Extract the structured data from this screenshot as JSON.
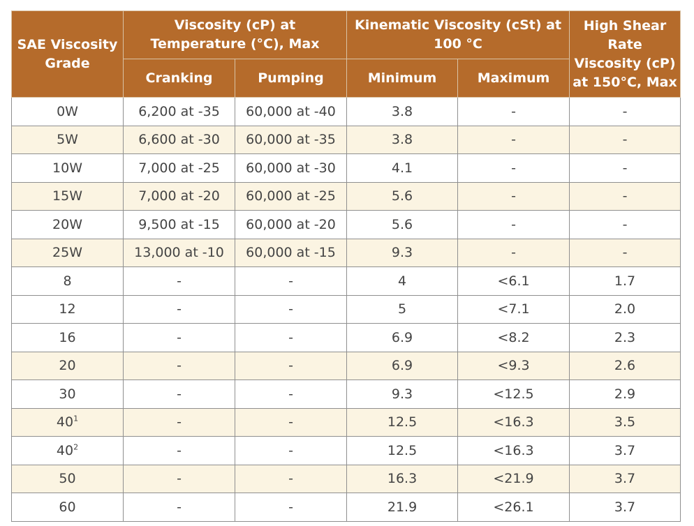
{
  "headers": {
    "grade": "SAE Viscosity Grade",
    "viscosity_temp": "Viscosity (cP) at Temperature (°C), Max",
    "cranking": "Cranking",
    "pumping": "Pumping",
    "kinematic": "Kinematic Viscosity (cSt) at 100 °C",
    "minimum": "Minimum",
    "maximum": "Maximum",
    "high_shear": "High Shear Rate Viscosity (cP) at 150°C, Max"
  },
  "rows": [
    {
      "grade": "0W",
      "grade_sup": "",
      "cranking": "6,200 at -35",
      "pumping": "60,000 at -40",
      "min": "3.8",
      "max": "-",
      "hs": "-"
    },
    {
      "grade": "5W",
      "grade_sup": "",
      "cranking": "6,600 at -30",
      "pumping": "60,000 at -35",
      "min": "3.8",
      "max": "-",
      "hs": "-"
    },
    {
      "grade": "10W",
      "grade_sup": "",
      "cranking": "7,000 at -25",
      "pumping": "60,000 at -30",
      "min": "4.1",
      "max": "-",
      "hs": "-"
    },
    {
      "grade": "15W",
      "grade_sup": "",
      "cranking": "7,000 at -20",
      "pumping": "60,000 at -25",
      "min": "5.6",
      "max": "-",
      "hs": "-"
    },
    {
      "grade": "20W",
      "grade_sup": "",
      "cranking": "9,500 at -15",
      "pumping": "60,000 at -20",
      "min": "5.6",
      "max": "-",
      "hs": "-"
    },
    {
      "grade": "25W",
      "grade_sup": "",
      "cranking": "13,000 at -10",
      "pumping": "60,000 at -15",
      "min": "9.3",
      "max": "-",
      "hs": "-"
    },
    {
      "grade": "8",
      "grade_sup": "",
      "cranking": "-",
      "pumping": "-",
      "min": "4",
      "max": "<6.1",
      "hs": "1.7"
    },
    {
      "grade": "12",
      "grade_sup": "",
      "cranking": "-",
      "pumping": "-",
      "min": "5",
      "max": "<7.1",
      "hs": "2.0"
    },
    {
      "grade": "16",
      "grade_sup": "",
      "cranking": "-",
      "pumping": "-",
      "min": "6.9",
      "max": "<8.2",
      "hs": "2.3"
    },
    {
      "grade": "20",
      "grade_sup": "",
      "cranking": "-",
      "pumping": "-",
      "min": "6.9",
      "max": "<9.3",
      "hs": "2.6"
    },
    {
      "grade": "30",
      "grade_sup": "",
      "cranking": "-",
      "pumping": "-",
      "min": "9.3",
      "max": "<12.5",
      "hs": "2.9"
    },
    {
      "grade": "40",
      "grade_sup": "1",
      "cranking": "-",
      "pumping": "-",
      "min": "12.5",
      "max": "<16.3",
      "hs": "3.5"
    },
    {
      "grade": "40",
      "grade_sup": "2",
      "cranking": "-",
      "pumping": "-",
      "min": "12.5",
      "max": "<16.3",
      "hs": "3.7"
    },
    {
      "grade": "50",
      "grade_sup": "",
      "cranking": "-",
      "pumping": "-",
      "min": "16.3",
      "max": "<21.9",
      "hs": "3.7"
    },
    {
      "grade": "60",
      "grade_sup": "",
      "cranking": "-",
      "pumping": "-",
      "min": "21.9",
      "max": "<26.1",
      "hs": "3.7"
    }
  ]
}
